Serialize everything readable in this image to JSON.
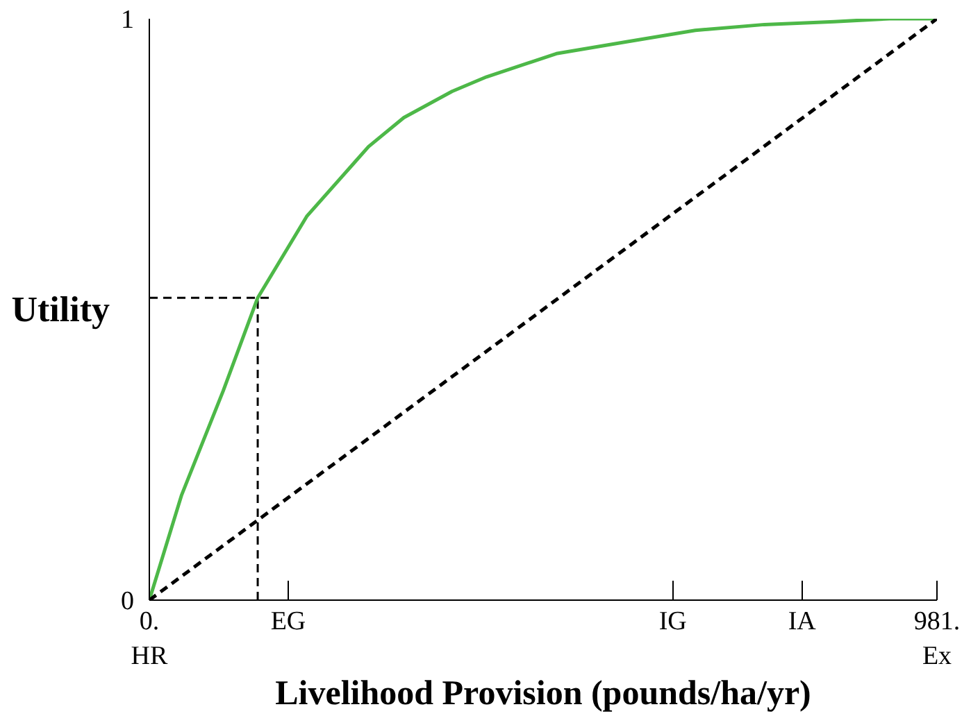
{
  "chart_data": {
    "type": "line",
    "xlabel": "Livelihood Provision (pounds/ha/yr)",
    "ylabel": "Utility",
    "xlim": [
      0,
      981
    ],
    "ylim": [
      0,
      1
    ],
    "xticks": [
      {
        "value": 0,
        "label": "0.\nHR"
      },
      {
        "value": 173,
        "label": "EG"
      },
      {
        "value": 652,
        "label": "IG"
      },
      {
        "value": 813,
        "label": "IA"
      },
      {
        "value": 981,
        "label": "981.\nEx"
      }
    ],
    "yticks": [
      0,
      1
    ],
    "grid": false,
    "marker": "none",
    "series": [
      {
        "color": "#4db848",
        "line_style": "solid",
        "x": [
          0,
          40,
          92,
          135,
          196,
          273,
          317,
          377,
          420,
          507,
          593,
          680,
          766,
          853,
          922,
          981
        ],
        "values": [
          0,
          0.18,
          0.36,
          0.52,
          0.66,
          0.78,
          0.83,
          0.875,
          0.9,
          0.94,
          0.96,
          0.98,
          0.99,
          0.995,
          1,
          1
        ]
      },
      {
        "color": "#000000",
        "line_style": "dashed",
        "x": [
          0,
          981
        ],
        "values": [
          0,
          1
        ]
      }
    ],
    "ref_lines": [
      {
        "axis": "x",
        "value": 135,
        "label": null,
        "color": "#000000",
        "line_style": "dashed"
      },
      {
        "axis": "y",
        "value": 0.52,
        "label": null,
        "color": "#000000",
        "line_style": "dashed"
      }
    ]
  }
}
